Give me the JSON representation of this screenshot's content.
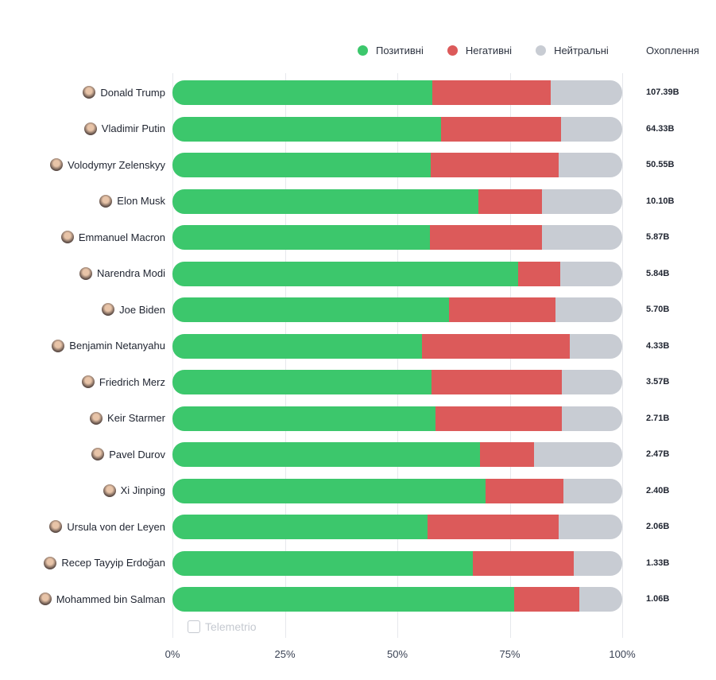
{
  "chart_data": {
    "type": "bar",
    "orientation": "horizontal",
    "stacked": true,
    "normalized": true,
    "legend": [
      {
        "name": "Позитивні",
        "color": "#3cc76c"
      },
      {
        "name": "Негативні",
        "color": "#dc5a5a"
      },
      {
        "name": "Нейтральні",
        "color": "#c8ccd3"
      }
    ],
    "reach_header": "Охоплення",
    "categories": [
      "Donald Trump",
      "Vladimir Putin",
      "Volodymyr Zelenskyy",
      "Elon Musk",
      "Emmanuel Macron",
      "Narendra Modi",
      "Joe Biden",
      "Benjamin Netanyahu",
      "Friedrich Merz",
      "Keir Starmer",
      "Pavel Durov",
      "Xi Jinping",
      "Ursula von der Leyen",
      "Recep Tayyip Erdoğan",
      "Mohammed bin Salman"
    ],
    "series": [
      {
        "name": "Позитивні",
        "values": [
          57.8,
          59.7,
          57.4,
          68.0,
          57.2,
          76.9,
          61.5,
          55.5,
          57.6,
          58.5,
          68.4,
          69.6,
          56.7,
          66.8,
          76.0
        ]
      },
      {
        "name": "Негативні",
        "values": [
          26.3,
          26.7,
          28.5,
          14.2,
          25.0,
          9.3,
          23.7,
          32.8,
          29.0,
          28.1,
          12.0,
          17.3,
          29.2,
          22.4,
          14.5
        ]
      },
      {
        "name": "Нейтральні",
        "values": [
          15.9,
          13.6,
          14.1,
          17.8,
          17.8,
          13.8,
          14.8,
          11.7,
          13.4,
          13.4,
          19.6,
          13.1,
          14.1,
          10.8,
          9.5
        ]
      }
    ],
    "reach": [
      "107.39B",
      "64.33B",
      "50.55B",
      "10.10B",
      "5.87B",
      "5.84B",
      "5.70B",
      "4.33B",
      "3.57B",
      "2.71B",
      "2.47B",
      "2.40B",
      "2.06B",
      "1.33B",
      "1.06B"
    ],
    "xticks": [
      "0%",
      "25%",
      "50%",
      "75%",
      "100%"
    ],
    "xlim": [
      0,
      100
    ],
    "grid": true,
    "legend_position": "top-right",
    "watermark": "Telemetrio"
  }
}
